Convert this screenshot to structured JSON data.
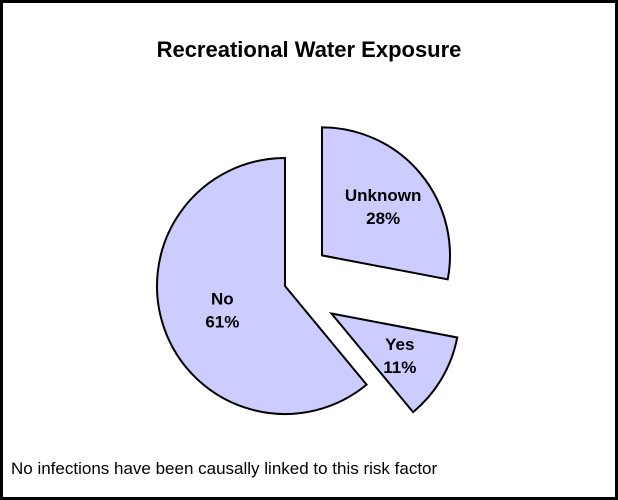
{
  "title": "Recreational Water Exposure",
  "footnote": "No infections have been causally linked to this risk factor",
  "colors": {
    "slice_fill": "#ccccff",
    "slice_stroke": "#000000",
    "border": "#000000"
  },
  "chart_data": {
    "type": "pie",
    "title": "Recreational Water Exposure",
    "exploded": true,
    "slices": [
      {
        "label": "Unknown",
        "value": 28,
        "value_label": "28%"
      },
      {
        "label": "Yes",
        "value": 11,
        "value_label": "11%"
      },
      {
        "label": "No",
        "value": 61,
        "value_label": "61%"
      }
    ]
  }
}
